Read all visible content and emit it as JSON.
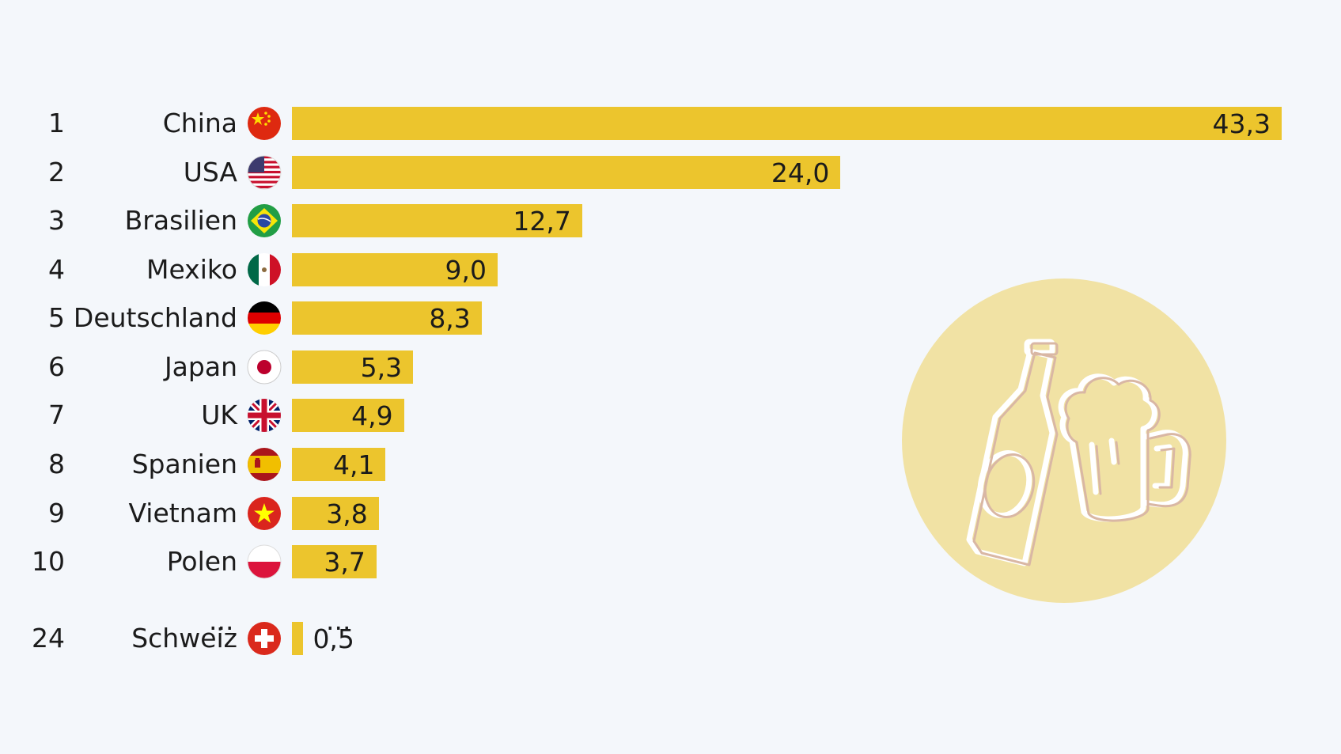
{
  "chart_data": {
    "type": "bar",
    "orientation": "horizontal",
    "title": "",
    "xlabel": "",
    "ylabel": "",
    "xlim": [
      0,
      43.3
    ],
    "rows": [
      {
        "rank": "1",
        "country": "China",
        "flag": "china-flag-icon",
        "value": 43.3,
        "label": "43,3"
      },
      {
        "rank": "2",
        "country": "USA",
        "flag": "usa-flag-icon",
        "value": 24.0,
        "label": "24,0"
      },
      {
        "rank": "3",
        "country": "Brasilien",
        "flag": "brazil-flag-icon",
        "value": 12.7,
        "label": "12,7"
      },
      {
        "rank": "4",
        "country": "Mexiko",
        "flag": "mexico-flag-icon",
        "value": 9.0,
        "label": "9,0"
      },
      {
        "rank": "5",
        "country": "Deutschland",
        "flag": "germany-flag-icon",
        "value": 8.3,
        "label": "8,3"
      },
      {
        "rank": "6",
        "country": "Japan",
        "flag": "japan-flag-icon",
        "value": 5.3,
        "label": "5,3"
      },
      {
        "rank": "7",
        "country": "UK",
        "flag": "uk-flag-icon",
        "value": 4.9,
        "label": "4,9"
      },
      {
        "rank": "8",
        "country": "Spanien",
        "flag": "spain-flag-icon",
        "value": 4.1,
        "label": "4,1"
      },
      {
        "rank": "9",
        "country": "Vietnam",
        "flag": "vietnam-flag-icon",
        "value": 3.8,
        "label": "3,8"
      },
      {
        "rank": "10",
        "country": "Polen",
        "flag": "poland-flag-icon",
        "value": 3.7,
        "label": "3,7"
      },
      {
        "rank": "24",
        "country": "Schweiz",
        "flag": "switzerland-flag-icon",
        "value": 0.5,
        "label": "0,5"
      }
    ],
    "ellipsis": "..."
  },
  "colors": {
    "bar": "#ecc52d",
    "background": "#f4f7fb",
    "decoration_circle": "#f1e2a4",
    "decoration_line": "#d9b7a4"
  },
  "decoration": {
    "icon": "beer-bottle-and-mug-icon"
  }
}
